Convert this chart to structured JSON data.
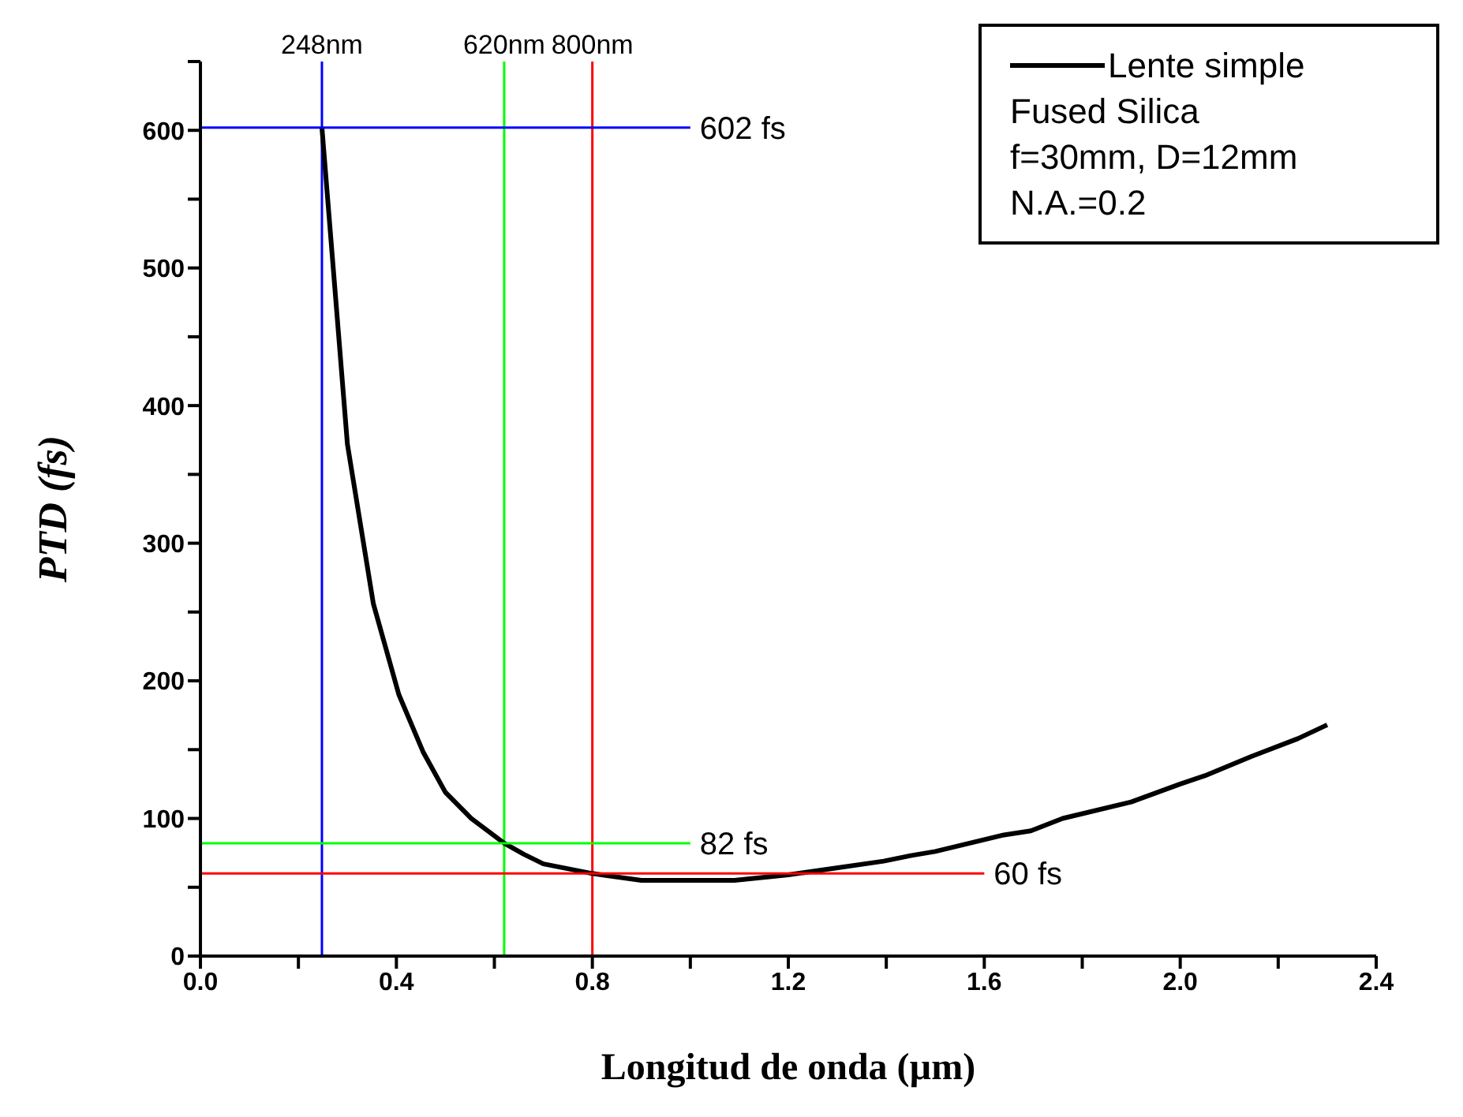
{
  "chart_data": {
    "type": "line",
    "xlabel": "Longitud de onda (µm)",
    "ylabel": "PTD (fs)",
    "xlim": [
      0,
      2.4
    ],
    "ylim": [
      0,
      650
    ],
    "xticks": [
      {
        "value": 0,
        "label": "0.0"
      },
      {
        "value": 0.2,
        "label": null
      },
      {
        "value": 0.4,
        "label": "0.4"
      },
      {
        "value": 0.6,
        "label": null
      },
      {
        "value": 0.8,
        "label": "0.8"
      },
      {
        "value": 1.0,
        "label": null
      },
      {
        "value": 1.2,
        "label": "1.2"
      },
      {
        "value": 1.4,
        "label": null
      },
      {
        "value": 1.6,
        "label": "1.6"
      },
      {
        "value": 1.8,
        "label": null
      },
      {
        "value": 2.0,
        "label": "2.0"
      },
      {
        "value": 2.2,
        "label": null
      },
      {
        "value": 2.4,
        "label": "2.4"
      }
    ],
    "yticks": [
      0,
      {
        "value": 50,
        "label": null
      },
      100,
      {
        "value": 150,
        "label": null
      },
      200,
      {
        "value": 250,
        "label": null
      },
      300,
      {
        "value": 350,
        "label": null
      },
      400,
      {
        "value": 450,
        "label": null
      },
      500,
      {
        "value": 550,
        "label": null
      },
      600,
      {
        "value": 650,
        "label": null
      }
    ],
    "marker": "none",
    "legend": "top right",
    "series": [
      {
        "name": "Lente simple",
        "color": "#000000",
        "x": [
          0.248,
          0.3,
          0.353,
          0.405,
          0.455,
          0.5,
          0.553,
          0.62,
          0.66,
          0.7,
          0.8,
          0.9,
          1.09,
          1.2,
          1.395,
          1.45,
          1.5,
          1.64,
          1.695,
          1.76,
          1.9,
          2.0,
          2.05,
          2.145,
          2.24,
          2.3
        ],
        "values": [
          602,
          372,
          256,
          190,
          148,
          119,
          100,
          82,
          74,
          67,
          60,
          55,
          55,
          59,
          69,
          73,
          76,
          88,
          91,
          100,
          112,
          125,
          131,
          145,
          158,
          168
        ]
      },
      {
        "name": "602 fs",
        "color": "#0000ff",
        "x": [
          0,
          1.0
        ],
        "values": [
          602,
          602
        ]
      },
      {
        "name": "82 fs",
        "color": "#00ff00",
        "x": [
          0,
          1.0
        ],
        "values": [
          82,
          82
        ]
      },
      {
        "name": "60 fs",
        "color": "#ff0000",
        "x": [
          0,
          1.6
        ],
        "values": [
          60,
          60
        ]
      }
    ],
    "ref_lines": [
      {
        "axis": "x",
        "value": 0.248,
        "label": "248nm",
        "color": "#0000ff"
      },
      {
        "axis": "x",
        "value": 0.62,
        "label": "620nm",
        "color": "#00ff00"
      },
      {
        "axis": "x",
        "value": 0.8,
        "label": "800nm",
        "color": "#ff0000"
      }
    ],
    "annotations": [
      "Fused Silica",
      "f=30mm, D=12mm",
      "N.A.=0.2"
    ]
  }
}
